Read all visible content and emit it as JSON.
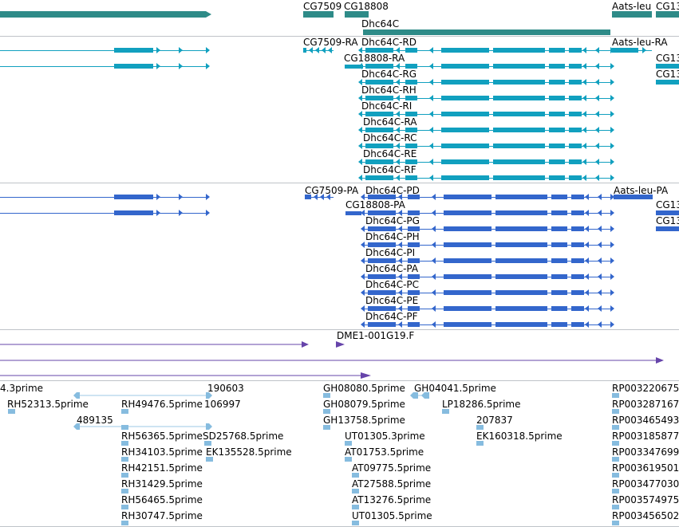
{
  "colors": {
    "gene": "#2e8b88",
    "transcript": "#11a0bf",
    "protein": "#3366cc",
    "clone": "#6644aa",
    "est": "#86bcdf",
    "est_line": "#9cc8e6",
    "divider": "#bfc3c8"
  },
  "genes": [
    {
      "label": "CG7509"
    },
    {
      "label": "CG18808"
    },
    {
      "label": "Dhc64C"
    },
    {
      "label": "Aats-leu"
    },
    {
      "label": "CG13"
    }
  ],
  "transcripts": [
    {
      "label": "CG7509-RA"
    },
    {
      "label": "Dhc64C-RD"
    },
    {
      "label": "Aats-leu-RA"
    },
    {
      "label": "CG13"
    },
    {
      "label": "CG18808-RA"
    },
    {
      "label": "CG13"
    },
    {
      "label": "Dhc64C-RG"
    },
    {
      "label": "Dhc64C-RH"
    },
    {
      "label": "Dhc64C-RI"
    },
    {
      "label": "Dhc64C-RA"
    },
    {
      "label": "Dhc64C-RC"
    },
    {
      "label": "Dhc64C-RE"
    },
    {
      "label": "Dhc64C-RF"
    }
  ],
  "proteins": [
    {
      "label": "CG7509-PA"
    },
    {
      "label": "Dhc64C-PD"
    },
    {
      "label": "Aats-leu-PA"
    },
    {
      "label": "CG18808-PA"
    },
    {
      "label": "CG13"
    },
    {
      "label": "CG13"
    },
    {
      "label": "Dhc64C-PG"
    },
    {
      "label": "Dhc64C-PH"
    },
    {
      "label": "Dhc64C-PI"
    },
    {
      "label": "Dhc64C-PA"
    },
    {
      "label": "Dhc64C-PC"
    },
    {
      "label": "Dhc64C-PE"
    },
    {
      "label": "Dhc64C-PF"
    }
  ],
  "clones": [
    {
      "label": "DME1-001G19.F"
    }
  ],
  "ests": [
    {
      "label": "4.3prime"
    },
    {
      "label": "190603"
    },
    {
      "label": "GH08080.5prime"
    },
    {
      "label": "GH04041.5prime"
    },
    {
      "label": "RP003220675"
    },
    {
      "label": "RH52313.5prime"
    },
    {
      "label": "RH49476.5prime"
    },
    {
      "label": "106997"
    },
    {
      "label": "GH08079.5prime"
    },
    {
      "label": "LP18286.5prime"
    },
    {
      "label": "RP003287167"
    },
    {
      "label": "489135"
    },
    {
      "label": "GH13758.5prime"
    },
    {
      "label": "207837"
    },
    {
      "label": "RP003465493"
    },
    {
      "label": "RH56365.5prime"
    },
    {
      "label": "SD25768.5prime"
    },
    {
      "label": "UT01305.3prime"
    },
    {
      "label": "EK160318.5prime"
    },
    {
      "label": "RP003185877"
    },
    {
      "label": "RH34103.5prime"
    },
    {
      "label": "EK135528.5prime"
    },
    {
      "label": "AT01753.5prime"
    },
    {
      "label": "RP003347699"
    },
    {
      "label": "RH42151.5prime"
    },
    {
      "label": "AT09775.5prime"
    },
    {
      "label": "RP003619501"
    },
    {
      "label": "RH31429.5prime"
    },
    {
      "label": "AT27588.5prime"
    },
    {
      "label": "RP003477030"
    },
    {
      "label": "RH56465.5prime"
    },
    {
      "label": "AT13276.5prime"
    },
    {
      "label": "RP003574975"
    },
    {
      "label": "RH30747.5prime"
    },
    {
      "label": "UT01305.5prime"
    },
    {
      "label": "RP003456502"
    }
  ]
}
